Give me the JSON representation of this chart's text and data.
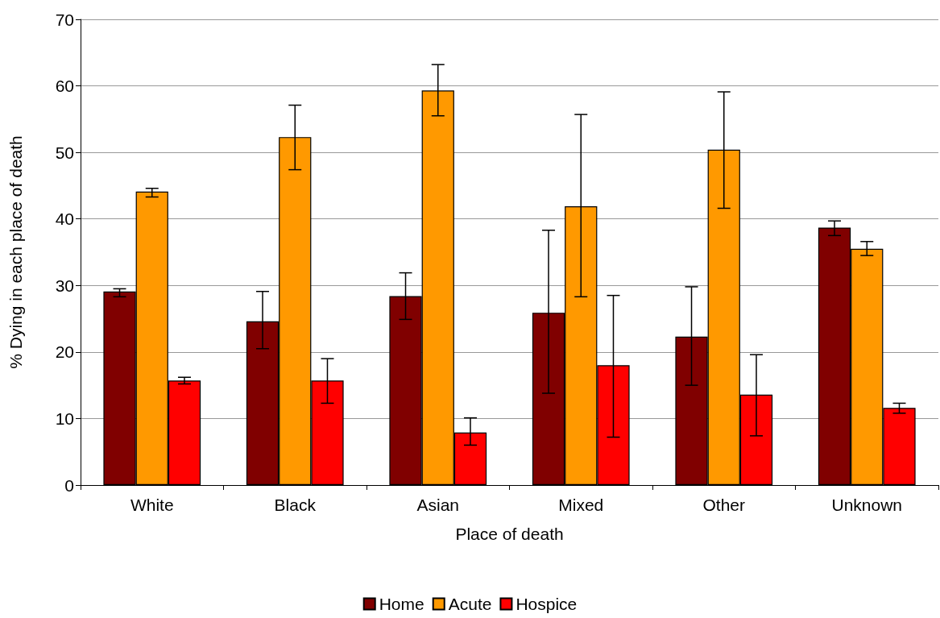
{
  "chart_data": {
    "type": "bar",
    "xlabel": "Place of death",
    "ylabel": "% Dying in each place of death",
    "categories": [
      "White",
      "Black",
      "Asian",
      "Mixed",
      "Other",
      "Unknown"
    ],
    "series": [
      {
        "name": "Home",
        "color": "#800000",
        "values": [
          29.1,
          24.6,
          28.4,
          25.9,
          22.3,
          38.7
        ],
        "errors": [
          [
            28.3,
            29.5
          ],
          [
            20.5,
            29.1
          ],
          [
            24.9,
            31.9
          ],
          [
            13.8,
            38.3
          ],
          [
            15.0,
            29.8
          ],
          [
            37.5,
            39.7
          ]
        ]
      },
      {
        "name": "Acute",
        "color": "#ff9900",
        "values": [
          44.1,
          52.3,
          59.3,
          41.9,
          50.4,
          35.5
        ],
        "errors": [
          [
            43.3,
            44.6
          ],
          [
            47.4,
            57.1
          ],
          [
            55.5,
            63.2
          ],
          [
            28.3,
            55.7
          ],
          [
            41.6,
            59.1
          ],
          [
            34.5,
            36.6
          ]
        ]
      },
      {
        "name": "Hospice",
        "color": "#ff0000",
        "values": [
          15.7,
          15.7,
          7.9,
          18.0,
          13.6,
          11.6
        ],
        "errors": [
          [
            15.2,
            16.2
          ],
          [
            12.3,
            19.0
          ],
          [
            6.0,
            10.1
          ],
          [
            7.2,
            28.5
          ],
          [
            7.4,
            19.6
          ],
          [
            10.8,
            12.3
          ]
        ]
      }
    ],
    "ylim": [
      0,
      70
    ],
    "yticks": [
      0,
      10,
      20,
      30,
      40,
      50,
      60,
      70
    ],
    "grid": "y",
    "legend": "bottom"
  }
}
